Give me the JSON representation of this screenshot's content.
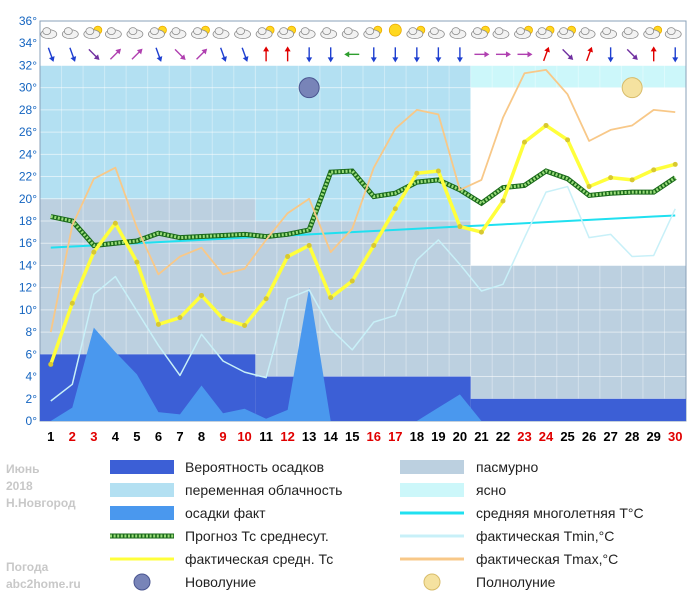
{
  "meta": {
    "month": "Июнь",
    "year": "2018",
    "city": "Н.Новгород",
    "site_label": "Погода",
    "site": "abc2home.ru"
  },
  "colors": {
    "precip_prob": "#3f51b5",
    "precip_prob_fill": "#3c5fd6",
    "variable_cloud": "#b3e0f2",
    "overcast": "#bcd0e0",
    "clear": "#ccf7fa",
    "precip_fact": "#4a98ee",
    "forecast_avg": "#2e9e2e",
    "fact_avg": "#ffff3b",
    "norm_avg": "#20e0f0",
    "fact_min": "#c8f0f8",
    "fact_max": "#f8c888",
    "red_day": "#e00000",
    "dark_day": "#000000",
    "axis_label": "#1565c0"
  },
  "legend": [
    {
      "key": "precip_prob",
      "label": "Вероятность осадков",
      "kind": "box",
      "color": "#3c5fd6"
    },
    {
      "key": "overcast",
      "label": "пасмурно",
      "kind": "box",
      "color": "#bcd0e0"
    },
    {
      "key": "variable_cloud",
      "label": "переменная облачность",
      "kind": "box",
      "color": "#b3e0f2"
    },
    {
      "key": "clear",
      "label": "ясно",
      "kind": "box",
      "color": "#ccf7fa"
    },
    {
      "key": "precip_fact",
      "label": "осадки факт",
      "kind": "box",
      "color": "#4a98ee"
    },
    {
      "key": "norm_avg",
      "label": "средняя многолетняя T°C",
      "kind": "line",
      "color": "#20e0f0"
    },
    {
      "key": "forecast_avg",
      "label": "Прогноз Тс среднесут.",
      "kind": "dotted",
      "color": "#2e9e2e"
    },
    {
      "key": "fact_min",
      "label": "фактическая Tmin,°C",
      "kind": "line",
      "color": "#c8f0f8"
    },
    {
      "key": "fact_avg",
      "label": "фактическая средн. Тс",
      "kind": "line",
      "color": "#ffff3b"
    },
    {
      "key": "fact_max",
      "label": "фактическая Tmax,°C",
      "kind": "line",
      "color": "#f8c888"
    },
    {
      "key": "new_moon",
      "label": "Новолуние",
      "kind": "newmoon",
      "color": "#5a6aa8"
    },
    {
      "key": "full_moon",
      "label": "Полнолуние",
      "kind": "fullmoon",
      "color": "#f0d890"
    }
  ],
  "chart_data": {
    "type": "line",
    "title": "",
    "xlabel": "",
    "ylabel": "",
    "ylim": [
      0,
      36
    ],
    "yticks": [
      "0°",
      "2°",
      "4°",
      "6°",
      "8°",
      "10°",
      "12°",
      "14°",
      "16°",
      "18°",
      "20°",
      "22°",
      "24°",
      "26°",
      "28°",
      "30°",
      "32°",
      "34°",
      "36°"
    ],
    "x": [
      "1",
      "2",
      "3",
      "4",
      "5",
      "6",
      "7",
      "8",
      "9",
      "10",
      "11",
      "12",
      "13",
      "14",
      "15",
      "16",
      "17",
      "18",
      "19",
      "20",
      "21",
      "22",
      "23",
      "24",
      "25",
      "26",
      "27",
      "28",
      "29",
      "30"
    ],
    "red_days": [
      2,
      3,
      9,
      10,
      12,
      16,
      17,
      23,
      24,
      30
    ],
    "cloud_bands": [
      {
        "from": 0.5,
        "to": 10.5,
        "upper": 32,
        "upper_type": "variable",
        "lower": 20,
        "lower_type": "overcast"
      },
      {
        "from": 10.5,
        "to": 20.5,
        "upper": 32,
        "upper_type": "overcast",
        "mid_type": "variable",
        "mid": 18,
        "lower": 18,
        "lower_type": "overcast"
      },
      {
        "from": 20.5,
        "to": 30.5,
        "upper": 32,
        "upper_type": "clear",
        "mid": 30,
        "mid_type": "variable",
        "lower": 14,
        "lower_type": "overcast"
      }
    ],
    "precip_probability": [
      {
        "from": 0.5,
        "to": 10.5,
        "value": 6
      },
      {
        "from": 10.5,
        "to": 20.5,
        "value": 4
      },
      {
        "from": 20.5,
        "to": 30.5,
        "value": 2
      }
    ],
    "precip_fact": [
      0,
      1.2,
      8.4,
      6.2,
      4.2,
      0.8,
      0.6,
      3.2,
      0.7,
      1.1,
      0.2,
      1.0,
      12,
      0,
      0,
      0,
      0,
      0,
      1.2,
      2.4,
      0,
      0,
      0,
      0,
      0,
      0,
      0,
      0,
      0,
      0
    ],
    "series": [
      {
        "name": "средняя многолетняя T°C",
        "key": "norm_avg",
        "values": [
          15.6,
          15.7,
          15.8,
          15.9,
          16.0,
          16.1,
          16.2,
          16.3,
          16.4,
          16.5,
          16.6,
          16.7,
          16.8,
          16.9,
          17.0,
          17.1,
          17.2,
          17.3,
          17.4,
          17.5,
          17.6,
          17.7,
          17.8,
          17.9,
          18.0,
          18.1,
          18.2,
          18.3,
          18.4,
          18.5
        ]
      },
      {
        "name": "Прогноз Тс среднесут.",
        "key": "forecast_avg",
        "values": [
          18.4,
          18.0,
          15.8,
          16.0,
          16.2,
          16.9,
          16.5,
          16.6,
          16.7,
          16.8,
          16.6,
          16.8,
          17.2,
          22.4,
          22.5,
          20.2,
          20.5,
          21.5,
          21.7,
          20.8,
          19.6,
          21.0,
          21.2,
          22.5,
          21.8,
          20.3,
          20.5,
          20.6,
          20.6,
          21.9
        ]
      },
      {
        "name": "фактическая Tmin,°C",
        "key": "fact_min",
        "values": [
          1.8,
          3.3,
          11.4,
          13.0,
          9.9,
          6.8,
          4.1,
          7.8,
          5.4,
          4.4,
          3.9,
          11.0,
          11.8,
          8.3,
          6.4,
          8.9,
          9.5,
          14.5,
          16.3,
          14.1,
          11.7,
          12.3,
          16.5,
          20.6,
          21.1,
          16.5,
          16.8,
          14.8,
          14.9,
          19.1
        ]
      },
      {
        "name": "фактическая Tmax,°C",
        "key": "fact_max",
        "values": [
          8.0,
          17.6,
          21.8,
          22.8,
          17.4,
          13.2,
          14.8,
          15.6,
          13.2,
          13.7,
          16.3,
          18.7,
          20.0,
          15.2,
          17.3,
          22.8,
          26.3,
          28.0,
          27.6,
          20.8,
          21.7,
          27.3,
          31.3,
          31.6,
          29.4,
          25.2,
          26.2,
          26.6,
          28.0,
          27.8
        ]
      },
      {
        "name": "фактическая средн. Тс",
        "key": "fact_avg",
        "values": [
          5.1,
          10.6,
          15.2,
          17.8,
          14.3,
          8.7,
          9.3,
          11.3,
          9.2,
          8.6,
          11.0,
          14.8,
          15.8,
          11.1,
          12.6,
          15.8,
          19.1,
          22.3,
          22.5,
          17.5,
          17.0,
          19.8,
          25.1,
          26.6,
          25.3,
          21.1,
          21.9,
          21.7,
          22.6,
          23.1
        ]
      }
    ],
    "new_moon": {
      "day": 13,
      "y": 30
    },
    "full_moon": {
      "day": 28,
      "y": 30
    },
    "weather_icons": [
      "cloud",
      "cloud",
      "sun-cloud",
      "cloud",
      "cloud",
      "sun-cloud",
      "cloud",
      "sun-cloud",
      "cloud",
      "cloud",
      "sun-cloud",
      "sun-cloud",
      "cloud",
      "cloud",
      "cloud",
      "sun-cloud",
      "sun",
      "sun-cloud",
      "cloud",
      "cloud",
      "sun-cloud",
      "cloud",
      "sun-cloud",
      "sun-cloud",
      "sun-cloud",
      "cloud",
      "cloud",
      "cloud",
      "sun-cloud",
      "cloud"
    ],
    "wind_arrows": [
      {
        "c": "#1e3fd0",
        "a": 160
      },
      {
        "c": "#1e3fd0",
        "a": 160
      },
      {
        "c": "#7030a0",
        "a": 135
      },
      {
        "c": "#b040b0",
        "a": 45
      },
      {
        "c": "#b040b0",
        "a": 45
      },
      {
        "c": "#1e3fd0",
        "a": 160
      },
      {
        "c": "#b040b0",
        "a": 135
      },
      {
        "c": "#b040b0",
        "a": 45
      },
      {
        "c": "#1e3fd0",
        "a": 160
      },
      {
        "c": "#1e3fd0",
        "a": 160
      },
      {
        "c": "#e00000",
        "a": 0
      },
      {
        "c": "#e00000",
        "a": 0
      },
      {
        "c": "#1e3fd0",
        "a": 180
      },
      {
        "c": "#1e3fd0",
        "a": 180
      },
      {
        "c": "#2e9e2e",
        "a": 270
      },
      {
        "c": "#1e3fd0",
        "a": 180
      },
      {
        "c": "#1e3fd0",
        "a": 180
      },
      {
        "c": "#1e3fd0",
        "a": 180
      },
      {
        "c": "#1e3fd0",
        "a": 180
      },
      {
        "c": "#1e3fd0",
        "a": 180
      },
      {
        "c": "#b040b0",
        "a": 90
      },
      {
        "c": "#b040b0",
        "a": 90
      },
      {
        "c": "#b040b0",
        "a": 90
      },
      {
        "c": "#e00000",
        "a": 20
      },
      {
        "c": "#7030a0",
        "a": 135
      },
      {
        "c": "#e00000",
        "a": 20
      },
      {
        "c": "#1e3fd0",
        "a": 180
      },
      {
        "c": "#7030a0",
        "a": 135
      },
      {
        "c": "#e00000",
        "a": 0
      },
      {
        "c": "#1e3fd0",
        "a": 180
      }
    ]
  }
}
